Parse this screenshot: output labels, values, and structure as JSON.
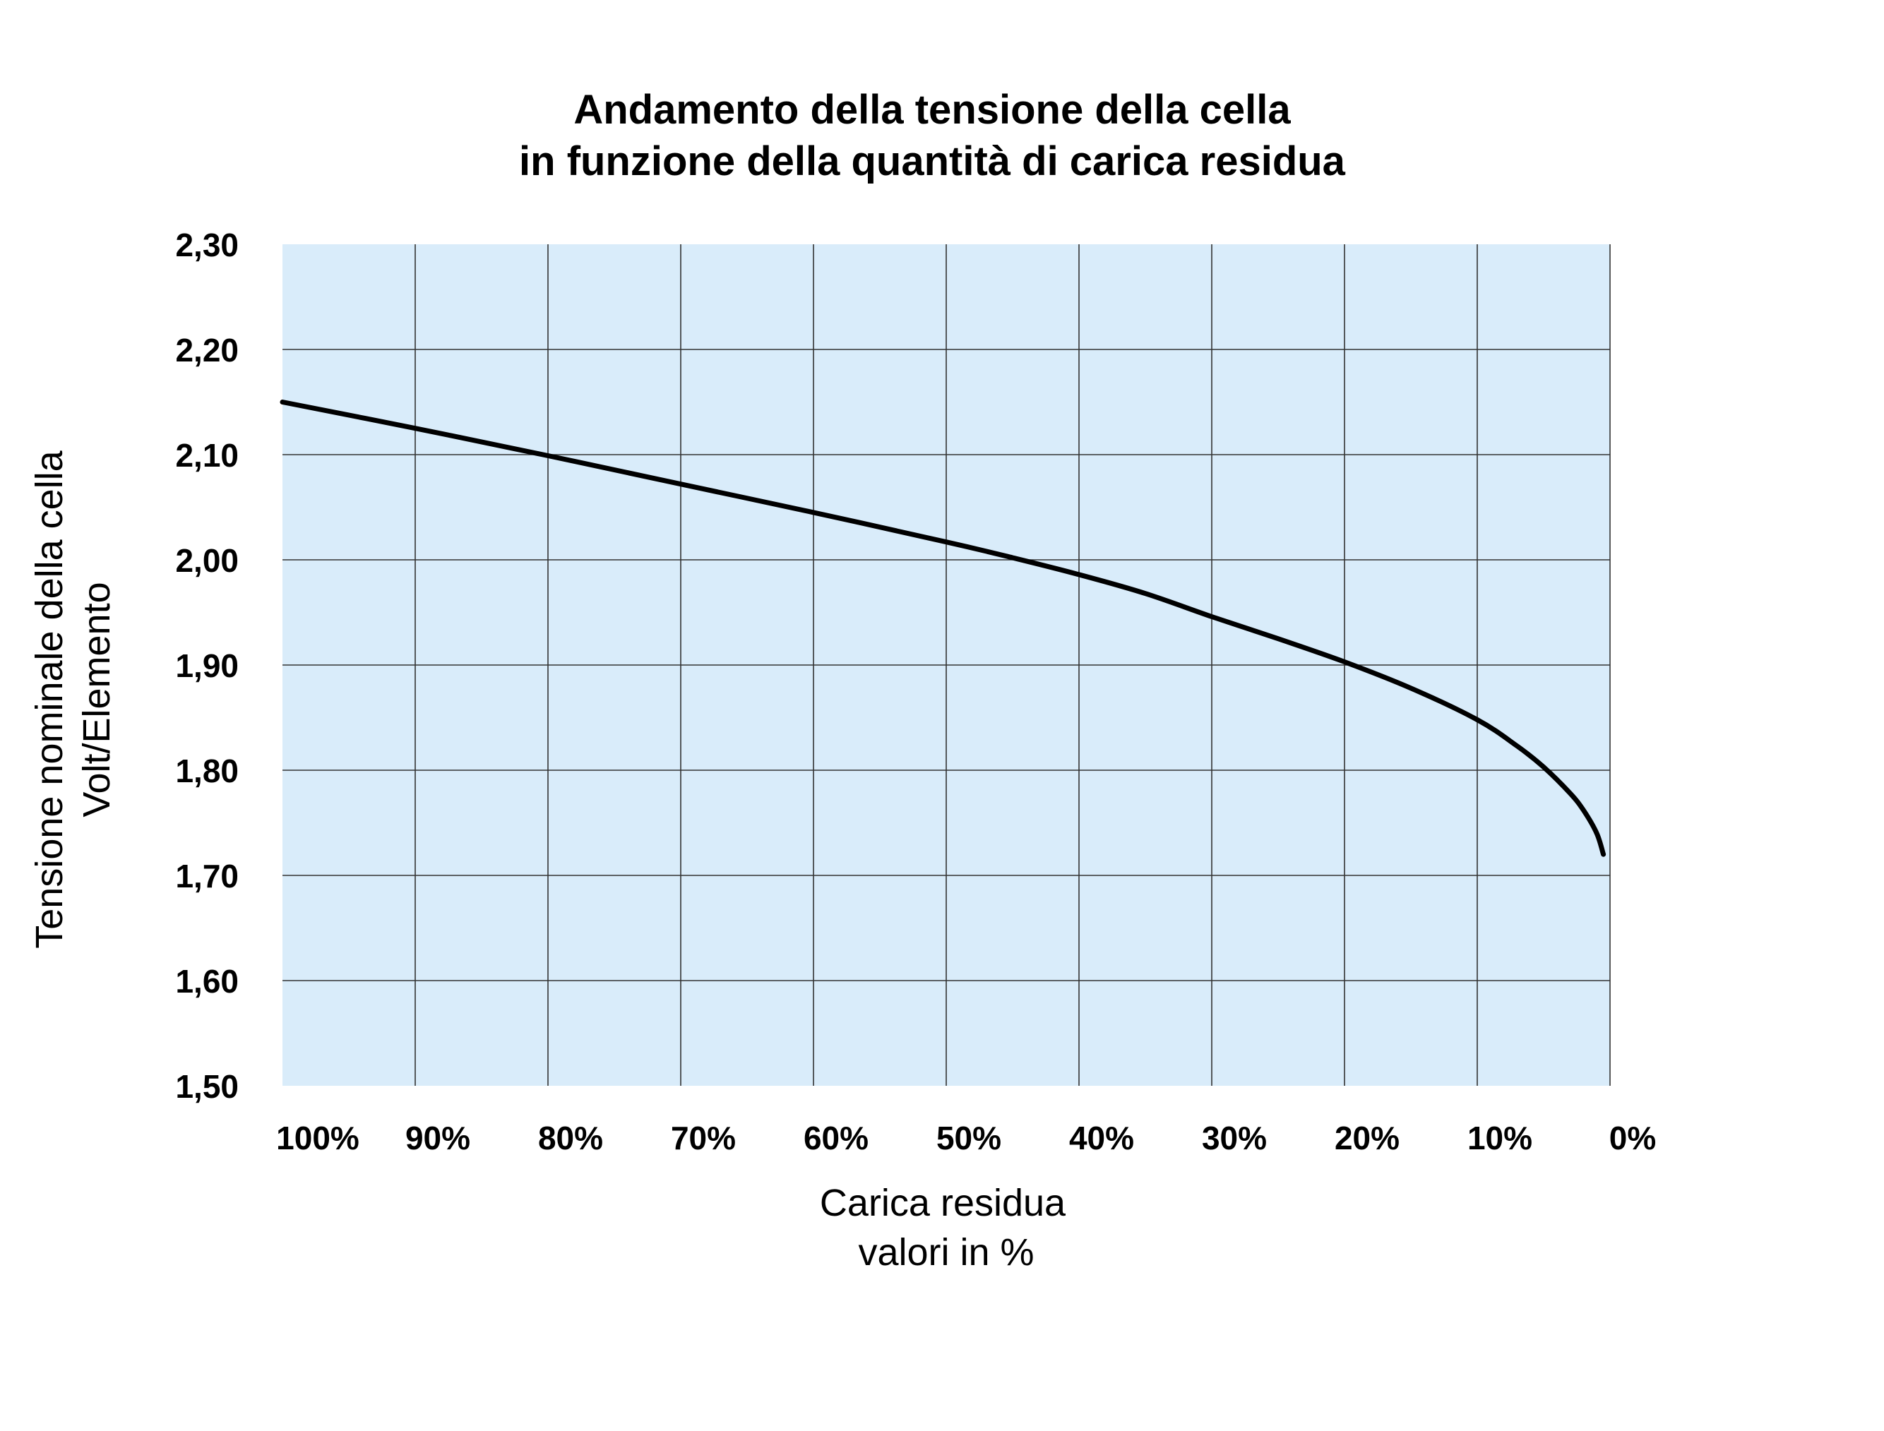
{
  "chart_data": {
    "type": "line",
    "title": [
      "Andamento della tensione della cella",
      "in funzione della quantità di carica residua"
    ],
    "xlabel": [
      "Carica residua",
      "valori in %"
    ],
    "ylabel": [
      "Tensione nominale della cella",
      "Volt/Elemento"
    ],
    "x_reversed": true,
    "xlim": [
      100,
      0
    ],
    "ylim": [
      1.5,
      2.3
    ],
    "xticks": [
      100,
      90,
      80,
      70,
      60,
      50,
      40,
      30,
      20,
      10,
      0
    ],
    "xtick_labels": [
      "100%",
      "90%",
      "80%",
      "70%",
      "60%",
      "50%",
      "40%",
      "30%",
      "20%",
      "10%",
      "0%"
    ],
    "yticks": [
      1.5,
      1.6,
      1.7,
      1.8,
      1.9,
      2.0,
      2.1,
      2.2,
      2.3
    ],
    "ytick_labels": [
      "1,50",
      "1,60",
      "1,70",
      "1,80",
      "1,90",
      "2,00",
      "2,10",
      "2,20",
      "2,30"
    ],
    "grid": true,
    "plot_background": "#d9ecfa",
    "series": [
      {
        "color": "#000000",
        "x": [
          100,
          90,
          80,
          70,
          60,
          50,
          45,
          40,
          35,
          30,
          25,
          20,
          15,
          10,
          7,
          5,
          3,
          2,
          1,
          0.5
        ],
        "y": [
          2.15,
          2.125,
          2.099,
          2.072,
          2.045,
          2.017,
          2.002,
          1.986,
          1.968,
          1.946,
          1.925,
          1.903,
          1.878,
          1.848,
          1.823,
          1.803,
          1.778,
          1.762,
          1.74,
          1.72
        ]
      }
    ]
  }
}
